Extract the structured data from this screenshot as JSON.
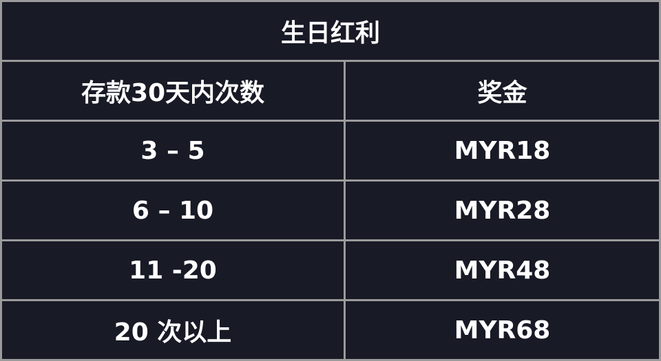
{
  "title": "生日红利",
  "headers": [
    "存款30天内次数",
    "奖金"
  ],
  "rows": [
    [
      "3 – 5",
      "MYR18"
    ],
    [
      "6 – 10",
      "MYR28"
    ],
    [
      "11 -20",
      "MYR48"
    ],
    [
      "20 次以上",
      "MYR68"
    ]
  ],
  "colors": {
    "background": "#181a26",
    "border": "#9b9b9b",
    "text": "#ffffff"
  }
}
